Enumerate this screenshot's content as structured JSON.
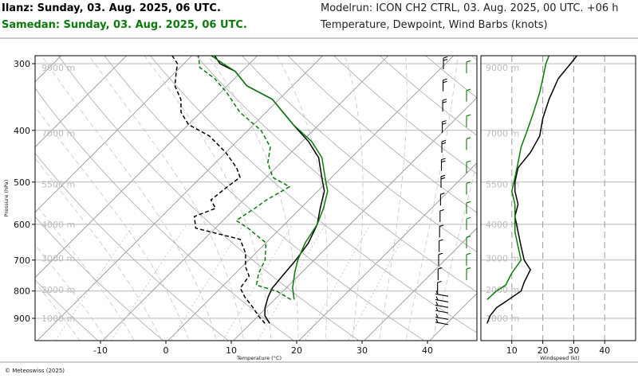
{
  "header": {
    "station1": "Ilanz: Sunday, 03. Aug. 2025, 06 UTC.",
    "station2": "Samedan: Sunday, 03. Aug. 2025, 06 UTC.",
    "model": "Modelrun: ICON CH2 CTRL, 03. Aug. 2025, 00 UTC. +06 h",
    "fields": "Temperature, Dewpoint, Wind Barbs (knots)"
  },
  "footer": "© Meteoswiss (2025)",
  "colors": {
    "station1": "#000000",
    "station2": "#0a7a0a"
  },
  "chart_data": [
    {
      "type": "line",
      "subtype": "skew-t",
      "xlabel": "Temperature (°C)",
      "ylabel": "Pressure (hPa)",
      "xlim": [
        -20,
        47
      ],
      "ylim": [
        950,
        290
      ],
      "x_ticks": [
        "-10",
        "0",
        "10",
        "20",
        "30",
        "40"
      ],
      "y_ticks": [
        "300",
        "400",
        "500",
        "600",
        "700",
        "800",
        "900"
      ],
      "altitude_labels": [
        "9000 m",
        "7000 m",
        "5500 m",
        "4000 m",
        "3000 m",
        "2000 m",
        "1000 m"
      ],
      "series": [
        {
          "role": "temperature-station1",
          "style": "solid",
          "color": "#000000",
          "points": [
            [
              12.9,
              920
            ],
            [
              11.0,
              890
            ],
            [
              9.8,
              860
            ],
            [
              8.6,
              820
            ],
            [
              7.9,
              790
            ],
            [
              7.5,
              740
            ],
            [
              7.2,
              700
            ],
            [
              6.5,
              650
            ],
            [
              5.0,
              600
            ],
            [
              3.0,
              560
            ],
            [
              1.0,
              520
            ],
            [
              -1.5,
              490
            ],
            [
              -5.0,
              450
            ],
            [
              -9.0,
              420
            ],
            [
              -14.0,
              390
            ],
            [
              -21.0,
              350
            ],
            [
              -27.0,
              330
            ],
            [
              -31.0,
              310
            ],
            [
              -34.5,
              300
            ],
            [
              -36.5,
              290
            ]
          ]
        },
        {
          "role": "dewpoint-station1",
          "style": "dashed",
          "color": "#000000",
          "points": [
            [
              12.2,
              920
            ],
            [
              10.0,
              890
            ],
            [
              8.0,
              860
            ],
            [
              5.0,
              820
            ],
            [
              3.0,
              790
            ],
            [
              2.5,
              750
            ],
            [
              0.5,
              720
            ],
            [
              -1.5,
              680
            ],
            [
              -4.5,
              640
            ],
            [
              -13.0,
              610
            ],
            [
              -15.0,
              580
            ],
            [
              -13.0,
              560
            ],
            [
              -15.0,
              540
            ],
            [
              -14.5,
              510
            ],
            [
              -14.0,
              490
            ],
            [
              -16.0,
              470
            ],
            [
              -20.0,
              440
            ],
            [
              -25.0,
              410
            ],
            [
              -30.0,
              390
            ],
            [
              -33.0,
              370
            ],
            [
              -35.0,
              350
            ],
            [
              -38.0,
              330
            ],
            [
              -40.0,
              310
            ],
            [
              -41.0,
              300
            ],
            [
              -43.0,
              290
            ]
          ]
        },
        {
          "role": "temperature-station2",
          "style": "solid",
          "color": "#0a7a0a",
          "points": [
            [
              13.0,
              830
            ],
            [
              11.0,
              790
            ],
            [
              9.0,
              740
            ],
            [
              7.5,
              700
            ],
            [
              6.0,
              650
            ],
            [
              5.0,
              600
            ],
            [
              3.5,
              560
            ],
            [
              1.5,
              520
            ],
            [
              -1.0,
              490
            ],
            [
              -4.5,
              450
            ],
            [
              -8.5,
              420
            ],
            [
              -14.0,
              390
            ],
            [
              -21.0,
              350
            ],
            [
              -27.0,
              330
            ],
            [
              -31.0,
              310
            ],
            [
              -34.0,
              300
            ],
            [
              -37.0,
              290
            ]
          ]
        },
        {
          "role": "dewpoint-station2",
          "style": "dashed",
          "color": "#0a7a0a",
          "points": [
            [
              12.5,
              830
            ],
            [
              9.0,
              800
            ],
            [
              5.0,
              780
            ],
            [
              3.5,
              740
            ],
            [
              2.5,
              700
            ],
            [
              0.0,
              650
            ],
            [
              -5.0,
              610
            ],
            [
              -8.0,
              590
            ],
            [
              -7.0,
              560
            ],
            [
              -6.5,
              540
            ],
            [
              -5.0,
              510
            ],
            [
              -9.0,
              490
            ],
            [
              -12.0,
              460
            ],
            [
              -14.0,
              430
            ],
            [
              -18.0,
              400
            ],
            [
              -24.0,
              370
            ],
            [
              -29.0,
              340
            ],
            [
              -33.0,
              320
            ],
            [
              -37.0,
              305
            ],
            [
              -39.0,
              290
            ]
          ]
        }
      ]
    },
    {
      "type": "line",
      "xlabel": "Windspeed (kt)",
      "xlim": [
        0,
        50
      ],
      "x_ticks": [
        "10",
        "20",
        "30",
        "40"
      ],
      "series": [
        {
          "role": "windspeed-station1",
          "color": "#000000",
          "points": [
            [
              2,
              920
            ],
            [
              3,
              890
            ],
            [
              5,
              860
            ],
            [
              9,
              830
            ],
            [
              13,
              800
            ],
            [
              14,
              770
            ],
            [
              16,
              730
            ],
            [
              14,
              700
            ],
            [
              13,
              660
            ],
            [
              12,
              620
            ],
            [
              11,
              580
            ],
            [
              12,
              550
            ],
            [
              11,
              520
            ],
            [
              11,
              500
            ],
            [
              12,
              470
            ],
            [
              16,
              440
            ],
            [
              19,
              410
            ],
            [
              20,
              380
            ],
            [
              22,
              350
            ],
            [
              25,
              320
            ],
            [
              29,
              300
            ],
            [
              31,
              290
            ]
          ]
        },
        {
          "role": "windspeed-station2",
          "color": "#0a7a0a",
          "points": [
            [
              2,
              830
            ],
            [
              5,
              800
            ],
            [
              8,
              780
            ],
            [
              10,
              740
            ],
            [
              13,
              700
            ],
            [
              12,
              660
            ],
            [
              11,
              620
            ],
            [
              11,
              580
            ],
            [
              11,
              550
            ],
            [
              10,
              520
            ],
            [
              11,
              490
            ],
            [
              12,
              460
            ],
            [
              13,
              430
            ],
            [
              15,
              400
            ],
            [
              17,
              370
            ],
            [
              19,
              340
            ],
            [
              20,
              320
            ],
            [
              21,
              300
            ],
            [
              22,
              290
            ]
          ]
        }
      ]
    }
  ]
}
